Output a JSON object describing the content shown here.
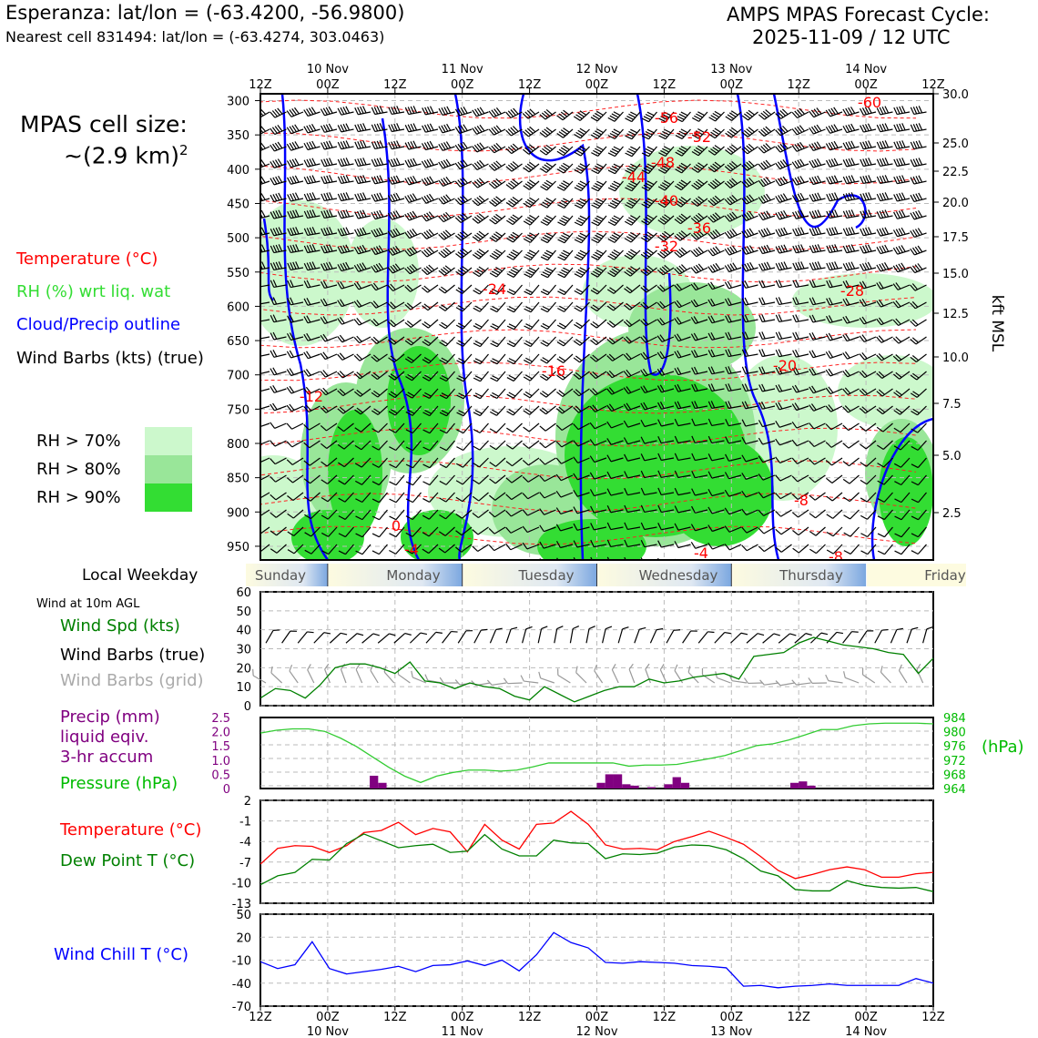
{
  "header": {
    "station": "Esperanza: lat/lon = (-63.4200, -56.9800)",
    "nearest_cell": "Nearest cell 831494: lat/lon = (-63.4274, 303.0463)",
    "cycle_title": "AMPS MPAS Forecast Cycle:",
    "cycle_time": "2025-11-09 / 12 UTC",
    "cell_size_label": "MPAS cell size:",
    "cell_size_value": "~(2.9 km)",
    "cell_size_exp": "2"
  },
  "legend": {
    "temperature": "Temperature (°C)",
    "rh": "RH (%) wrt liq. wat",
    "cloud": "Cloud/Precip outline",
    "barbs": "Wind Barbs (kts) (true)",
    "rh70": "RH > 70%",
    "rh80": "RH > 80%",
    "rh90": "RH > 90%",
    "colors": {
      "temperature": "#ff0000",
      "rh_label": "#33dd33",
      "cloud": "#0000ff",
      "rh70": "#ccf8cc",
      "rh80": "#99e699",
      "rh90": "#33dd33"
    }
  },
  "time_axis": {
    "top_ticks": [
      "12Z",
      "00Z",
      "12Z",
      "00Z",
      "12Z",
      "00Z",
      "12Z",
      "00Z",
      "12Z",
      "00Z",
      "12Z"
    ],
    "dates": [
      "10 Nov",
      "11 Nov",
      "12 Nov",
      "13 Nov",
      "14 Nov"
    ]
  },
  "weekday": {
    "label": "Local Weekday",
    "days": [
      "Sunday",
      "Monday",
      "Tuesday",
      "Wednesday",
      "Thursday",
      "Friday"
    ]
  },
  "panel_labels": {
    "wind_title": "Wind at 10m AGL",
    "wind_spd": "Wind Spd (kts)",
    "wind_barbs_true": "Wind Barbs (true)",
    "wind_barbs_grid": "Wind Barbs (grid)",
    "precip1": "Precip (mm)",
    "precip2": "liquid eqiv.",
    "precip3": "3-hr accum",
    "pressure": "Pressure (hPa)",
    "pressure_unit": "(hPa)",
    "temp": "Temperature (°C)",
    "dewpoint": "Dew Point T (°C)",
    "windchill": "Wind Chill T (°C)"
  },
  "chart_data": [
    {
      "type": "heatmap",
      "y_axis_left_ticks": [
        300,
        350,
        400,
        450,
        500,
        550,
        600,
        650,
        700,
        750,
        800,
        850,
        900,
        950
      ],
      "y_axis_right_ticks": [
        "30.0",
        "25.0",
        "22.5",
        "20.0",
        "17.5",
        "15.0",
        "12.5",
        "10.0",
        "7.5",
        "5.0",
        "2.5"
      ],
      "y_axis_right_label": "kft MSL",
      "temperature_contour_labels": [
        "-60",
        "-56",
        "-52",
        "-48",
        "-44",
        "-40",
        "-36",
        "-32",
        "-28",
        "-24",
        "-20",
        "-16",
        "-12",
        "-8",
        "-8",
        "-4",
        "-4",
        "0"
      ]
    },
    {
      "type": "line",
      "ylim": [
        0,
        60
      ],
      "yticks": [
        0,
        10,
        20,
        30,
        40,
        50,
        60
      ],
      "series": [
        {
          "name": "Wind Spd (kts)",
          "color": "#008000",
          "values": [
            4,
            9,
            8,
            4,
            11,
            20,
            22,
            22,
            20,
            17,
            23,
            13,
            12,
            9,
            12,
            10,
            9,
            5,
            3,
            10,
            6,
            2,
            5,
            8,
            10,
            10,
            14,
            12,
            13,
            15,
            16,
            17,
            14,
            26,
            27,
            28,
            33,
            36,
            34,
            32,
            31,
            30,
            28,
            27,
            17,
            25
          ]
        }
      ]
    },
    {
      "type": "bar",
      "ylim": [
        0,
        2.5
      ],
      "yticks": [
        "0",
        "0.5",
        "1.0",
        "1.5",
        "2.0",
        "2.5"
      ],
      "precip_bars": [
        {
          "x": 13,
          "v": 0.45
        },
        {
          "x": 14,
          "v": 0.2
        },
        {
          "x": 40,
          "v": 0.2
        },
        {
          "x": 41,
          "v": 0.5
        },
        {
          "x": 42,
          "v": 0.5
        },
        {
          "x": 43,
          "v": 0.15
        },
        {
          "x": 44,
          "v": 0.1
        },
        {
          "x": 46,
          "v": 0.05
        },
        {
          "x": 48,
          "v": 0.15
        },
        {
          "x": 49,
          "v": 0.4
        },
        {
          "x": 50,
          "v": 0.2
        },
        {
          "x": 63,
          "v": 0.2
        },
        {
          "x": 64,
          "v": 0.25
        },
        {
          "x": 65,
          "v": 0.1
        }
      ],
      "pressure_ticks": [
        "984",
        "980",
        "976",
        "972",
        "968",
        "964"
      ],
      "pressure_series": {
        "name": "Pressure (hPa)",
        "color": "#33cc33",
        "values": [
          979.6,
          980.4,
          980.8,
          980.8,
          980.1,
          978.2,
          975.8,
          972.9,
          970.0,
          967.5,
          965.7,
          967.5,
          968.5,
          969.2,
          969.2,
          968.9,
          969.2,
          970.1,
          971.2,
          971.2,
          971.2,
          971.2,
          971.2,
          970.3,
          970.6,
          970.6,
          970.8,
          971.6,
          972.4,
          973.3,
          974.7,
          976.1,
          976.6,
          977.7,
          979.1,
          980.6,
          980.6,
          981.7,
          982.2,
          982.4,
          982.4,
          982.4,
          982.2
        ]
      }
    },
    {
      "type": "line",
      "ylim": [
        -13,
        2
      ],
      "yticks": [
        "2",
        "-1",
        "-4",
        "-7",
        "-10",
        "-13"
      ],
      "series": [
        {
          "name": "Temperature (°C)",
          "color": "#ff0000",
          "values": [
            -7.3,
            -5.0,
            -4.6,
            -4.7,
            -5.6,
            -4.6,
            -2.7,
            -2.4,
            -1.2,
            -3.0,
            -2.1,
            -2.6,
            -5.5,
            -1.5,
            -3.8,
            -5.1,
            -1.5,
            -1.3,
            0.4,
            -1.5,
            -4.5,
            -5.1,
            -5.0,
            -5.2,
            -4.0,
            -3.3,
            -2.5,
            -3.4,
            -4.4,
            -6.2,
            -8.2,
            -9.4,
            -8.8,
            -8.1,
            -7.7,
            -8.1,
            -9.2,
            -9.2,
            -8.7,
            -8.5
          ]
        },
        {
          "name": "Dew Point T (°C)",
          "color": "#008000",
          "values": [
            -10.3,
            -9.0,
            -8.5,
            -6.6,
            -6.7,
            -4.3,
            -2.9,
            -3.9,
            -4.9,
            -4.6,
            -4.4,
            -5.6,
            -5.4,
            -3.0,
            -5.1,
            -6.1,
            -6.1,
            -3.8,
            -4.2,
            -4.3,
            -6.5,
            -5.8,
            -5.9,
            -5.7,
            -4.8,
            -4.5,
            -4.6,
            -5.2,
            -6.5,
            -8.3,
            -9.0,
            -11.0,
            -11.2,
            -11.2,
            -9.7,
            -10.4,
            -10.7,
            -10.8,
            -10.7,
            -11.3
          ]
        }
      ]
    },
    {
      "type": "line",
      "ylim": [
        -70,
        50
      ],
      "yticks": [
        "50",
        "20",
        "-10",
        "-40",
        "-70"
      ],
      "series": [
        {
          "name": "Wind Chill T (°C)",
          "color": "#0000ff",
          "values": [
            -12,
            -21,
            -16,
            14,
            -21,
            -28,
            -25,
            -22,
            -18,
            -25,
            -17,
            -16,
            -11,
            -17,
            -10,
            -24,
            -3,
            26,
            13,
            6,
            -13,
            -14,
            -12,
            -13,
            -14,
            -17,
            -18,
            -20,
            -44,
            -43,
            -46,
            -44,
            -43,
            -41,
            -43,
            -43,
            -43,
            -43,
            -34,
            -40
          ]
        }
      ]
    }
  ]
}
